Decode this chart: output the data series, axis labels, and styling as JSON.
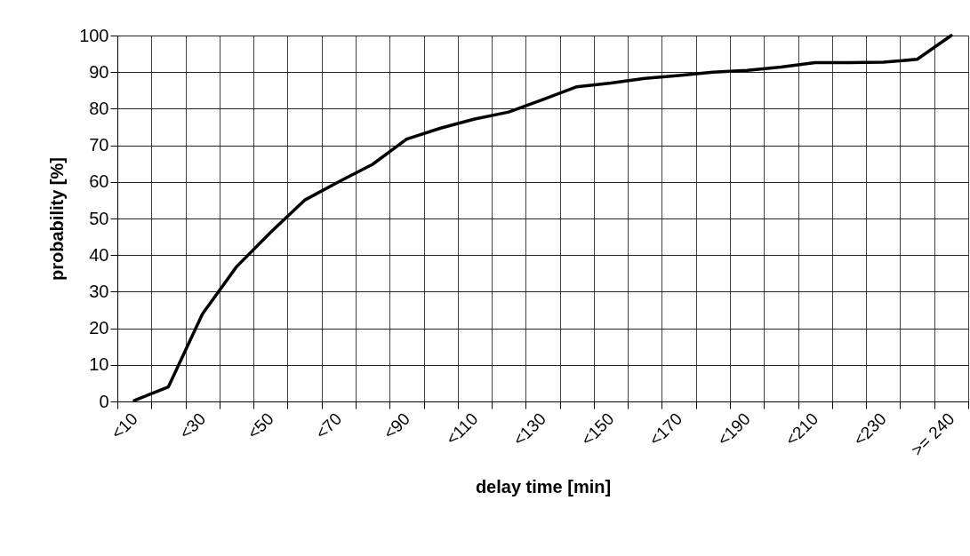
{
  "chart_data": {
    "type": "line",
    "xlabel": "delay time [min]",
    "ylabel": "probability [%]",
    "categories": [
      "<10",
      null,
      "<30",
      null,
      "<50",
      null,
      "<70",
      null,
      "<90",
      null,
      "<110",
      null,
      "<130",
      null,
      "<150",
      null,
      "<170",
      null,
      "<190",
      null,
      "<210",
      null,
      "<230",
      null,
      ">= 240"
    ],
    "series": [
      {
        "color": "#000000",
        "values": [
          0.3,
          4.0,
          23.9,
          36.8,
          46.2,
          55.0,
          60.0,
          64.8,
          71.7,
          74.7,
          77.2,
          79.1,
          82.5,
          86.0,
          87.0,
          88.3,
          89.1,
          90.0,
          90.5,
          91.4,
          92.6,
          92.6,
          92.7,
          93.5,
          100
        ]
      }
    ],
    "ylim": [
      0,
      100
    ],
    "yticks": [
      0,
      10,
      20,
      30,
      40,
      50,
      60,
      70,
      80,
      90,
      100
    ],
    "grid": true,
    "marker": "none",
    "line_style": "solid"
  }
}
